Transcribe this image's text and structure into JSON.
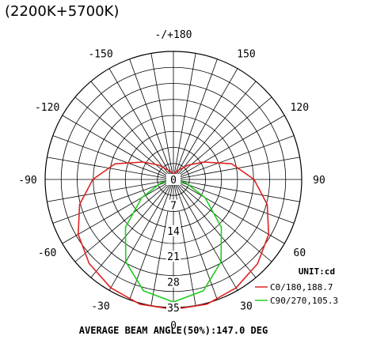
{
  "header": {
    "title": "(2200K+5700K)"
  },
  "chart_data": {
    "type": "polar",
    "unit_label": "UNIT:cd",
    "max_radius": 35,
    "radial_ticks": [
      7,
      14,
      21,
      28,
      35
    ],
    "radial_tick_labels": [
      "0",
      "7",
      "14",
      "21",
      "28",
      "35"
    ],
    "angle_labels": [
      {
        "angle": 180,
        "text": "-/+180"
      },
      {
        "angle": -150,
        "text": "-150"
      },
      {
        "angle": 150,
        "text": "150"
      },
      {
        "angle": -120,
        "text": "-120"
      },
      {
        "angle": 120,
        "text": "120"
      },
      {
        "angle": -90,
        "text": "-90"
      },
      {
        "angle": 90,
        "text": "90"
      },
      {
        "angle": -60,
        "text": "-60"
      },
      {
        "angle": 60,
        "text": "60"
      },
      {
        "angle": -30,
        "text": "-30"
      },
      {
        "angle": 30,
        "text": "30"
      },
      {
        "angle": 0,
        "text": "0"
      }
    ],
    "series": [
      {
        "name": "C0/180,188.7",
        "color": "#dd2222",
        "points": [
          [
            -180,
            1
          ],
          [
            -165,
            2
          ],
          [
            -150,
            3
          ],
          [
            -135,
            5.5
          ],
          [
            -120,
            9.5
          ],
          [
            -105,
            16.5
          ],
          [
            -90,
            22
          ],
          [
            -75,
            26.5
          ],
          [
            -60,
            30
          ],
          [
            -45,
            32.5
          ],
          [
            -30,
            34.2
          ],
          [
            -15,
            35.3
          ],
          [
            0,
            35.5
          ],
          [
            15,
            35.3
          ],
          [
            30,
            34.2
          ],
          [
            45,
            32.5
          ],
          [
            60,
            30
          ],
          [
            75,
            26.5
          ],
          [
            90,
            22
          ],
          [
            105,
            16.5
          ],
          [
            120,
            9.5
          ],
          [
            135,
            5.5
          ],
          [
            150,
            3
          ],
          [
            165,
            2
          ],
          [
            180,
            1
          ]
        ]
      },
      {
        "name": "C90/270,105.3",
        "color": "#22cc22",
        "points": [
          [
            -90,
            0
          ],
          [
            -75,
            3.5
          ],
          [
            -60,
            10
          ],
          [
            -45,
            18.5
          ],
          [
            -30,
            26
          ],
          [
            -15,
            31.5
          ],
          [
            0,
            33.5
          ],
          [
            15,
            31.5
          ],
          [
            30,
            26
          ],
          [
            45,
            18.5
          ],
          [
            60,
            10
          ],
          [
            75,
            3.5
          ],
          [
            90,
            0
          ]
        ]
      }
    ],
    "footer": "AVERAGE BEAM ANGLE(50%):147.0 DEG"
  }
}
